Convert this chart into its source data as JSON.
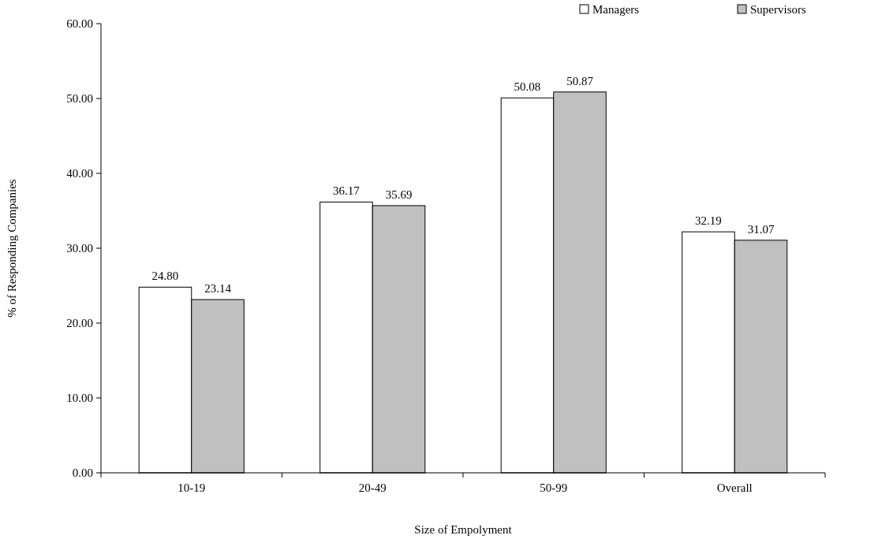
{
  "chart_data": {
    "type": "bar",
    "xlabel": "Size of Empolyment",
    "ylabel": "% of Responding Companies",
    "categories": [
      "10-19",
      "20-49",
      "50-99",
      "Overall"
    ],
    "series": [
      {
        "name": "Managers",
        "color": "#ffffff",
        "values": [
          24.8,
          36.17,
          50.08,
          32.19
        ],
        "value_labels": [
          "24.80",
          "36.17",
          "50.08",
          "32.19"
        ]
      },
      {
        "name": "Supervisors",
        "color": "#c0c0c0",
        "values": [
          23.14,
          35.69,
          50.87,
          31.07
        ],
        "value_labels": [
          "23.14",
          "35.69",
          "50.87",
          "31.07"
        ]
      }
    ],
    "ylim": [
      0,
      60
    ],
    "yticks": [
      {
        "value": 0,
        "label": "0.00"
      },
      {
        "value": 10,
        "label": "10.00"
      },
      {
        "value": 20,
        "label": "20.00"
      },
      {
        "value": 30,
        "label": "30.00"
      },
      {
        "value": 40,
        "label": "40.00"
      },
      {
        "value": 50,
        "label": "50.00"
      },
      {
        "value": 60,
        "label": "60.00"
      }
    ],
    "legend": "top right",
    "grid": false
  }
}
